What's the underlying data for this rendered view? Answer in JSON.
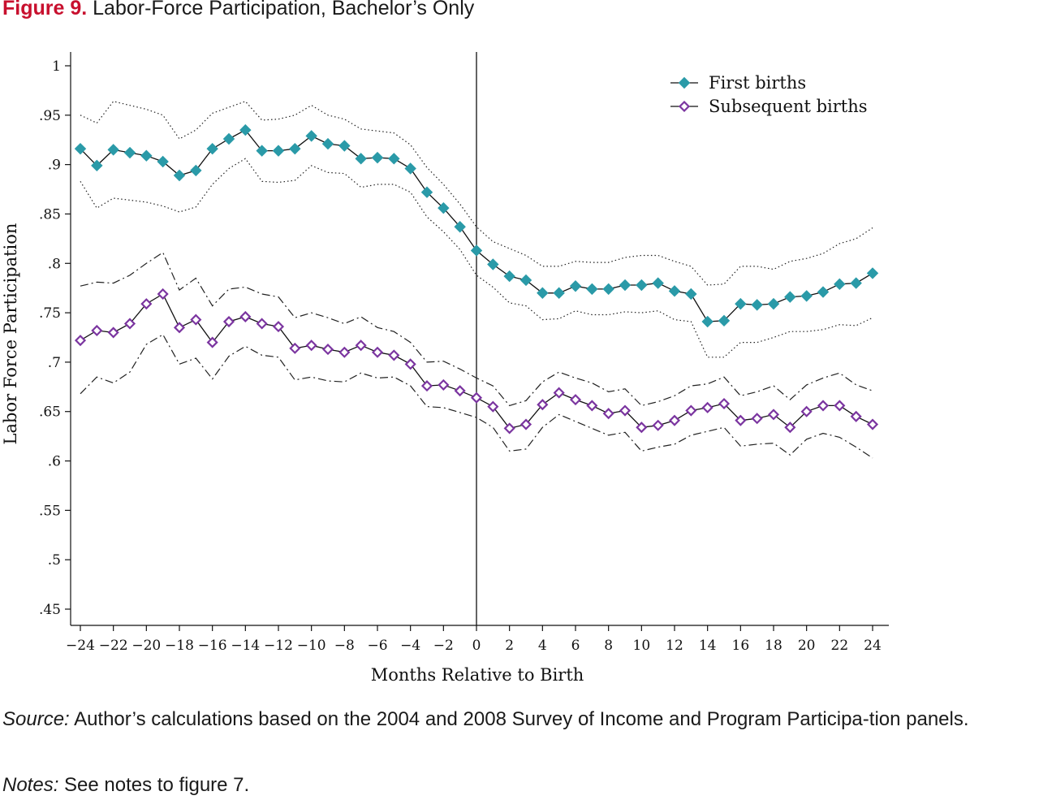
{
  "figure": {
    "label": "Figure 9.",
    "title": "Labor-Force Participation, Bachelor’s Only"
  },
  "source": {
    "label": "Source:",
    "text": " Author’s calculations based on the 2004 and 2008 Survey of Income and Program Participa-tion panels."
  },
  "notes": {
    "label": "Notes:",
    "text": " See notes to figure 7."
  },
  "chart_data": {
    "type": "line",
    "xlabel": "Months Relative to Birth",
    "ylabel": "Labor Force Participation",
    "xlim": [
      -24,
      24
    ],
    "ylim": [
      0.45,
      1.0
    ],
    "x_ticks": [
      -24,
      -22,
      -20,
      -18,
      -16,
      -14,
      -12,
      -10,
      -8,
      -6,
      -4,
      -2,
      0,
      2,
      4,
      6,
      8,
      10,
      12,
      14,
      16,
      18,
      20,
      22,
      24
    ],
    "x_tick_labels": [
      "−24",
      "−22",
      "−20",
      "−18",
      "−16",
      "−14",
      "−12",
      "−10",
      "−8",
      "−6",
      "−4",
      "−2",
      "0",
      "2",
      "4",
      "6",
      "8",
      "10",
      "12",
      "14",
      "16",
      "18",
      "20",
      "22",
      "24"
    ],
    "y_ticks": [
      0.45,
      0.5,
      0.55,
      0.6,
      0.65,
      0.7,
      0.75,
      0.8,
      0.85,
      0.9,
      0.95,
      1.0
    ],
    "y_tick_labels": [
      ".45",
      ".5",
      ".55",
      ".6",
      ".65",
      ".7",
      ".75",
      ".8",
      ".85",
      ".9",
      ".95",
      "1"
    ],
    "vertical_line_at": 0,
    "legend_position": "top-right",
    "x": [
      -24,
      -23,
      -22,
      -21,
      -20,
      -19,
      -18,
      -17,
      -16,
      -15,
      -14,
      -13,
      -12,
      -11,
      -10,
      -9,
      -8,
      -7,
      -6,
      -5,
      -4,
      -3,
      -2,
      -1,
      0,
      1,
      2,
      3,
      4,
      5,
      6,
      7,
      8,
      9,
      10,
      11,
      12,
      13,
      14,
      15,
      16,
      17,
      18,
      19,
      20,
      21,
      22,
      23,
      24
    ],
    "series": [
      {
        "name": "First births",
        "color": "#2a9aa8",
        "marker": "filled-diamond",
        "values": [
          0.916,
          0.899,
          0.915,
          0.912,
          0.909,
          0.903,
          0.889,
          0.894,
          0.916,
          0.926,
          0.935,
          0.914,
          0.914,
          0.916,
          0.929,
          0.921,
          0.919,
          0.906,
          0.907,
          0.906,
          0.896,
          0.872,
          0.856,
          0.837,
          0.813,
          0.799,
          0.787,
          0.783,
          0.77,
          0.77,
          0.777,
          0.774,
          0.774,
          0.778,
          0.778,
          0.78,
          0.772,
          0.769,
          0.741,
          0.742,
          0.759,
          0.758,
          0.759,
          0.766,
          0.767,
          0.771,
          0.779,
          0.78,
          0.79
        ],
        "ci_upper": [
          0.95,
          0.942,
          0.964,
          0.96,
          0.956,
          0.95,
          0.926,
          0.935,
          0.952,
          0.958,
          0.964,
          0.945,
          0.946,
          0.95,
          0.96,
          0.95,
          0.946,
          0.936,
          0.934,
          0.932,
          0.92,
          0.897,
          0.88,
          0.86,
          0.837,
          0.822,
          0.815,
          0.808,
          0.797,
          0.797,
          0.802,
          0.801,
          0.801,
          0.806,
          0.808,
          0.808,
          0.802,
          0.797,
          0.778,
          0.779,
          0.797,
          0.797,
          0.794,
          0.802,
          0.805,
          0.81,
          0.82,
          0.825,
          0.836
        ],
        "ci_lower": [
          0.883,
          0.856,
          0.866,
          0.864,
          0.862,
          0.858,
          0.852,
          0.857,
          0.88,
          0.896,
          0.906,
          0.883,
          0.882,
          0.884,
          0.899,
          0.892,
          0.891,
          0.877,
          0.88,
          0.88,
          0.872,
          0.847,
          0.832,
          0.814,
          0.788,
          0.776,
          0.76,
          0.757,
          0.743,
          0.744,
          0.752,
          0.748,
          0.748,
          0.751,
          0.75,
          0.752,
          0.743,
          0.741,
          0.705,
          0.705,
          0.72,
          0.72,
          0.725,
          0.731,
          0.731,
          0.733,
          0.738,
          0.737,
          0.745
        ]
      },
      {
        "name": "Subsequent births",
        "color": "#7b35a0",
        "marker": "hollow-diamond",
        "values": [
          0.722,
          0.732,
          0.73,
          0.739,
          0.759,
          0.769,
          0.735,
          0.743,
          0.72,
          0.741,
          0.746,
          0.739,
          0.736,
          0.714,
          0.717,
          0.713,
          0.71,
          0.717,
          0.71,
          0.707,
          0.698,
          0.676,
          0.677,
          0.671,
          0.664,
          0.655,
          0.633,
          0.637,
          0.657,
          0.669,
          0.662,
          0.656,
          0.648,
          0.651,
          0.634,
          0.636,
          0.641,
          0.651,
          0.654,
          0.658,
          0.641,
          0.643,
          0.647,
          0.634,
          0.65,
          0.656,
          0.656,
          0.645,
          0.637
        ],
        "ci_upper": [
          0.777,
          0.781,
          0.78,
          0.788,
          0.8,
          0.811,
          0.773,
          0.785,
          0.757,
          0.774,
          0.776,
          0.769,
          0.766,
          0.745,
          0.75,
          0.745,
          0.739,
          0.746,
          0.735,
          0.731,
          0.72,
          0.7,
          0.701,
          0.693,
          0.684,
          0.676,
          0.656,
          0.661,
          0.68,
          0.69,
          0.684,
          0.679,
          0.67,
          0.673,
          0.656,
          0.66,
          0.666,
          0.676,
          0.678,
          0.685,
          0.666,
          0.67,
          0.676,
          0.662,
          0.677,
          0.684,
          0.689,
          0.677,
          0.671
        ],
        "ci_lower": [
          0.668,
          0.685,
          0.679,
          0.69,
          0.718,
          0.728,
          0.698,
          0.704,
          0.683,
          0.706,
          0.716,
          0.707,
          0.705,
          0.682,
          0.685,
          0.681,
          0.68,
          0.689,
          0.684,
          0.685,
          0.676,
          0.655,
          0.654,
          0.649,
          0.644,
          0.634,
          0.61,
          0.612,
          0.634,
          0.647,
          0.64,
          0.633,
          0.626,
          0.629,
          0.61,
          0.614,
          0.617,
          0.626,
          0.63,
          0.634,
          0.615,
          0.617,
          0.618,
          0.606,
          0.622,
          0.628,
          0.624,
          0.614,
          0.603
        ]
      }
    ]
  }
}
